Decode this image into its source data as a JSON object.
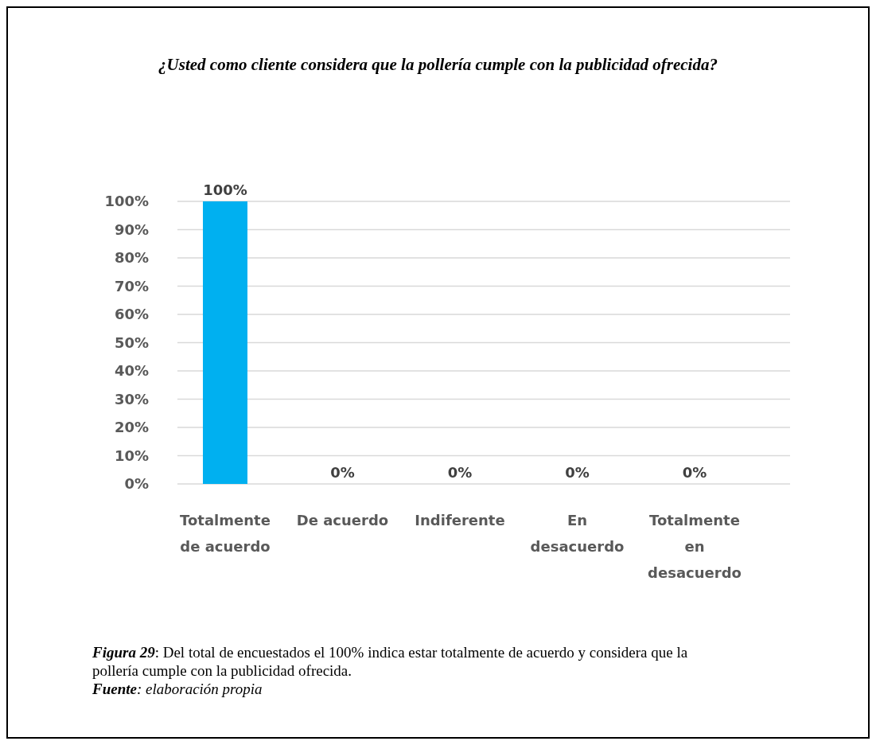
{
  "chart_data": {
    "type": "bar",
    "title": "¿Usted como cliente considera que la pollería cumple con la publicidad ofrecida?",
    "categories": [
      "Totalmente de acuerdo",
      "De acuerdo",
      "Indiferente",
      "En desacuerdo",
      "Totalmente en desacuerdo"
    ],
    "values": [
      100,
      0,
      0,
      0,
      0
    ],
    "colors": [
      "#00b0f0",
      "#c4c400",
      "#595959",
      "#c55a11",
      "#70ad47"
    ],
    "value_labels": [
      "100%",
      "0%",
      "0%",
      "0%",
      "0%"
    ],
    "ylim": [
      0,
      100
    ],
    "yticks": [
      {
        "value": 0,
        "label": "0%"
      },
      {
        "value": 10,
        "label": "10%"
      },
      {
        "value": 20,
        "label": "20%"
      },
      {
        "value": 30,
        "label": "30%"
      },
      {
        "value": 40,
        "label": "40%"
      },
      {
        "value": 50,
        "label": "50%"
      },
      {
        "value": 60,
        "label": "60%"
      },
      {
        "value": 70,
        "label": "70%"
      },
      {
        "value": 80,
        "label": "80%"
      },
      {
        "value": 90,
        "label": "90%"
      },
      {
        "value": 100,
        "label": "100%"
      }
    ],
    "grid": "y",
    "annotations": [
      "Figura 29: Del total de encuestados el 100% indica estar totalmente de acuerdo y considera que la pollería cumple con la publicidad ofrecida.",
      "Fuente: elaboración propia"
    ]
  }
}
